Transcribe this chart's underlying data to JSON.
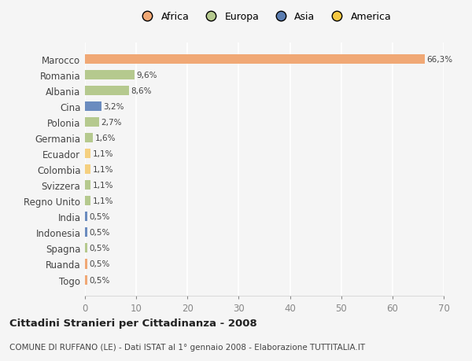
{
  "countries": [
    "Marocco",
    "Romania",
    "Albania",
    "Cina",
    "Polonia",
    "Germania",
    "Ecuador",
    "Colombia",
    "Svizzera",
    "Regno Unito",
    "India",
    "Indonesia",
    "Spagna",
    "Ruanda",
    "Togo"
  ],
  "values": [
    66.3,
    9.6,
    8.6,
    3.2,
    2.7,
    1.6,
    1.1,
    1.1,
    1.1,
    1.1,
    0.5,
    0.5,
    0.5,
    0.5,
    0.5
  ],
  "labels": [
    "66,3%",
    "9,6%",
    "8,6%",
    "3,2%",
    "2,7%",
    "1,6%",
    "1,1%",
    "1,1%",
    "1,1%",
    "1,1%",
    "0,5%",
    "0,5%",
    "0,5%",
    "0,5%",
    "0,5%"
  ],
  "continents": [
    "Africa",
    "Europa",
    "Europa",
    "Asia",
    "Europa",
    "Europa",
    "America",
    "America",
    "Europa",
    "Europa",
    "Asia",
    "Asia",
    "Europa",
    "Africa",
    "Africa"
  ],
  "colors": {
    "Africa": "#F0A875",
    "Europa": "#B5C98E",
    "Asia": "#6B8CBF",
    "America": "#F5D080"
  },
  "legend_colors": {
    "Africa": "#F0A875",
    "Europa": "#B5C98E",
    "Asia": "#5B7DB1",
    "America": "#F5C842"
  },
  "legend_order": [
    "Africa",
    "Europa",
    "Asia",
    "America"
  ],
  "title": "Cittadini Stranieri per Cittadinanza - 2008",
  "subtitle": "COMUNE DI RUFFANO (LE) - Dati ISTAT al 1° gennaio 2008 - Elaborazione TUTTITALIA.IT",
  "xlim": [
    0,
    70
  ],
  "xticks": [
    0,
    10,
    20,
    30,
    40,
    50,
    60,
    70
  ],
  "background_color": "#f5f5f5",
  "grid_color": "#ffffff",
  "bar_height": 0.6
}
